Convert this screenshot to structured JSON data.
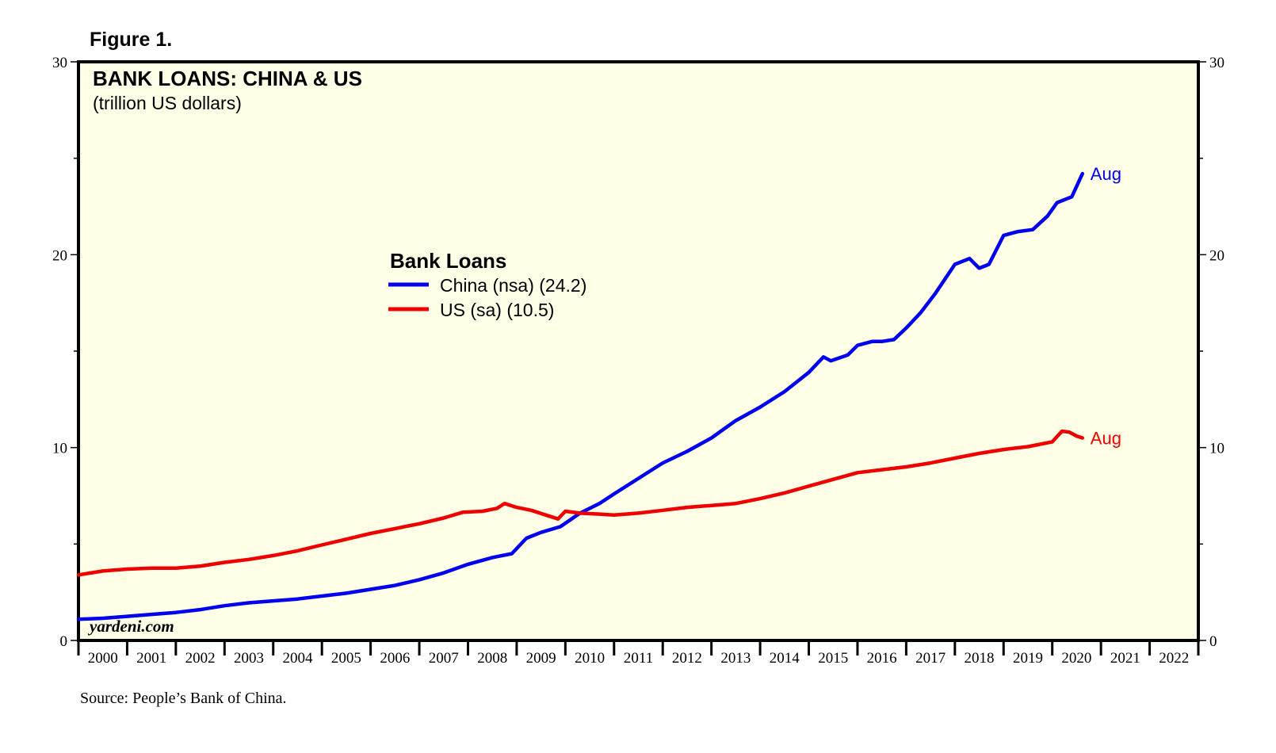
{
  "figure_label": "Figure 1.",
  "source": "Source: People’s Bank of China.",
  "watermark": "yardeni.com",
  "colors": {
    "plot_bg": "#ffffe8",
    "china": "#0000ee",
    "us": "#ee0000",
    "frame": "#000000"
  },
  "chart_data": {
    "type": "line",
    "title": "BANK LOANS: CHINA & US",
    "subtitle": "(trillion US dollars)",
    "xlim": [
      2000,
      2023
    ],
    "ylim": [
      0,
      30
    ],
    "yticks": [
      0,
      10,
      20,
      30
    ],
    "ytick_labels": [
      "0",
      "10",
      "20",
      "30"
    ],
    "xtick_labels": [
      "2000",
      "2001",
      "2002",
      "2003",
      "2004",
      "2005",
      "2006",
      "2007",
      "2008",
      "2009",
      "2010",
      "2011",
      "2012",
      "2013",
      "2014",
      "2015",
      "2016",
      "2017",
      "2018",
      "2019",
      "2020",
      "2021",
      "2022"
    ],
    "grid": false,
    "legend": {
      "title": "Bank Loans",
      "placement": "center-left",
      "entries": [
        "China (nsa) (24.2)",
        "US (sa) (10.5)"
      ]
    },
    "series": [
      {
        "name": "China (nsa) (24.2)",
        "color": "#0000ee",
        "end_label": "Aug",
        "x": [
          2000.0,
          2000.5,
          2001.0,
          2001.5,
          2002.0,
          2002.5,
          2003.0,
          2003.5,
          2004.0,
          2004.5,
          2005.0,
          2005.5,
          2006.0,
          2006.5,
          2007.0,
          2007.5,
          2008.0,
          2008.5,
          2008.9,
          2009.2,
          2009.5,
          2009.9,
          2010.3,
          2010.7,
          2011.0,
          2011.5,
          2012.0,
          2012.5,
          2013.0,
          2013.5,
          2014.0,
          2014.5,
          2015.0,
          2015.3,
          2015.45,
          2015.8,
          2016.0,
          2016.3,
          2016.5,
          2016.75,
          2017.0,
          2017.3,
          2017.6,
          2018.0,
          2018.3,
          2018.5,
          2018.7,
          2019.0,
          2019.3,
          2019.6,
          2019.9,
          2020.1,
          2020.4,
          2020.62
        ],
        "values": [
          1.1,
          1.15,
          1.25,
          1.35,
          1.45,
          1.6,
          1.8,
          1.95,
          2.05,
          2.15,
          2.3,
          2.45,
          2.65,
          2.85,
          3.15,
          3.5,
          3.95,
          4.3,
          4.5,
          5.3,
          5.6,
          5.9,
          6.6,
          7.1,
          7.6,
          8.4,
          9.2,
          9.8,
          10.5,
          11.4,
          12.1,
          12.9,
          13.9,
          14.7,
          14.5,
          14.8,
          15.3,
          15.5,
          15.5,
          15.6,
          16.2,
          17.0,
          18.0,
          19.5,
          19.8,
          19.3,
          19.5,
          21.0,
          21.2,
          21.3,
          22.0,
          22.7,
          23.0,
          24.2
        ]
      },
      {
        "name": "US (sa) (10.5)",
        "color": "#ee0000",
        "end_label": "Aug",
        "x": [
          2000.0,
          2000.5,
          2001.0,
          2001.5,
          2002.0,
          2002.5,
          2003.0,
          2003.5,
          2004.0,
          2004.5,
          2005.0,
          2005.5,
          2006.0,
          2006.5,
          2007.0,
          2007.5,
          2007.9,
          2008.3,
          2008.6,
          2008.75,
          2009.0,
          2009.3,
          2009.6,
          2009.85,
          2010.0,
          2010.3,
          2010.7,
          2011.0,
          2011.5,
          2012.0,
          2012.5,
          2013.0,
          2013.5,
          2014.0,
          2014.5,
          2015.0,
          2015.5,
          2016.0,
          2016.5,
          2017.0,
          2017.5,
          2018.0,
          2018.5,
          2019.0,
          2019.5,
          2020.0,
          2020.2,
          2020.35,
          2020.5,
          2020.62
        ],
        "values": [
          3.4,
          3.6,
          3.7,
          3.75,
          3.75,
          3.85,
          4.05,
          4.2,
          4.4,
          4.65,
          4.95,
          5.25,
          5.55,
          5.8,
          6.05,
          6.35,
          6.65,
          6.7,
          6.85,
          7.1,
          6.9,
          6.75,
          6.5,
          6.3,
          6.7,
          6.6,
          6.55,
          6.5,
          6.6,
          6.75,
          6.9,
          7.0,
          7.1,
          7.35,
          7.65,
          8.0,
          8.35,
          8.7,
          8.85,
          9.0,
          9.2,
          9.45,
          9.7,
          9.9,
          10.05,
          10.3,
          10.85,
          10.8,
          10.6,
          10.5
        ]
      }
    ]
  }
}
